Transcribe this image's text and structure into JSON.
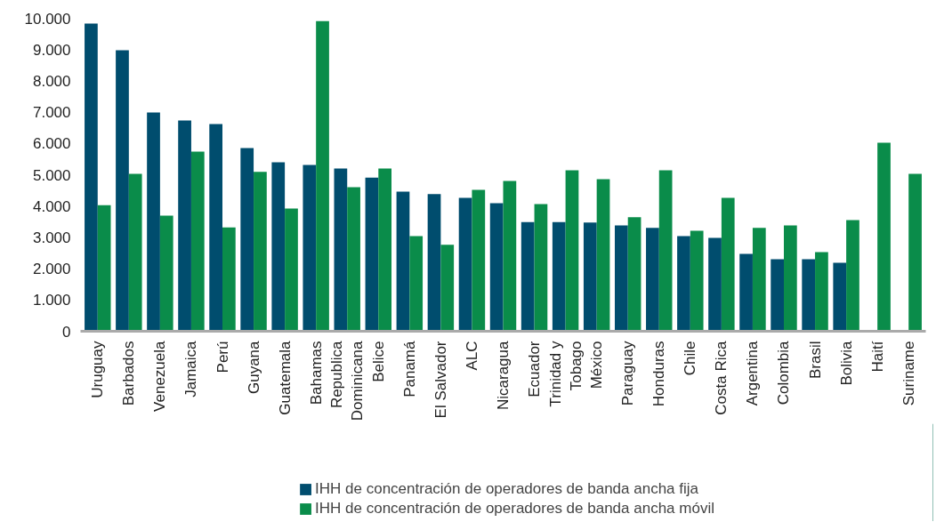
{
  "chart_data": {
    "type": "bar",
    "categories": [
      "Uruguay",
      "Barbados",
      "Venezuela",
      "Jamaica",
      "Perú",
      "Guyana",
      "Guatemala",
      "Bahamas",
      "Republica Dominicana",
      "Belice",
      "Panamá",
      "El Salvador",
      "ALC",
      "Nicaragua",
      "Ecuador",
      "Trinidad y Tobago",
      "México",
      "Paraguay",
      "Honduras",
      "Chile",
      "Costa Rica",
      "Argentina",
      "Colombia",
      "Brasil",
      "Bolivia",
      "Haití",
      "Suriname"
    ],
    "series": [
      {
        "name": "IHH de concentración de operadores de banda ancha fija",
        "color": "#004d6e",
        "values": [
          9830,
          8980,
          6990,
          6730,
          6620,
          5850,
          5400,
          5310,
          5200,
          4910,
          4460,
          4380,
          4260,
          4090,
          3490,
          3490,
          3470,
          3380,
          3300,
          3040,
          2980,
          2470,
          2300,
          2300,
          2190,
          null,
          null
        ]
      },
      {
        "name": "IHH de concentración de operadores de banda ancha móvil",
        "color": "#0a8c4a",
        "values": [
          4030,
          5030,
          3690,
          5740,
          3320,
          5090,
          3920,
          9910,
          4600,
          5200,
          3040,
          2760,
          4520,
          4800,
          4060,
          5140,
          4860,
          3640,
          5140,
          3210,
          4260,
          3300,
          3380,
          2530,
          3550,
          6020,
          5030
        ]
      }
    ],
    "ylim": [
      0,
      10000
    ],
    "yticks": [
      {
        "value": 0,
        "label": "0"
      },
      {
        "value": 1000,
        "label": "1.000"
      },
      {
        "value": 2000,
        "label": "2.000"
      },
      {
        "value": 3000,
        "label": "3.000"
      },
      {
        "value": 4000,
        "label": "4.000"
      },
      {
        "value": 5000,
        "label": "5.000"
      },
      {
        "value": 6000,
        "label": "6.000"
      },
      {
        "value": 7000,
        "label": "7.000"
      },
      {
        "value": 8000,
        "label": "8.000"
      },
      {
        "value": 9000,
        "label": "9.000"
      },
      {
        "value": 10000,
        "label": "10.000"
      }
    ],
    "grid": false,
    "legend": "bottom"
  }
}
